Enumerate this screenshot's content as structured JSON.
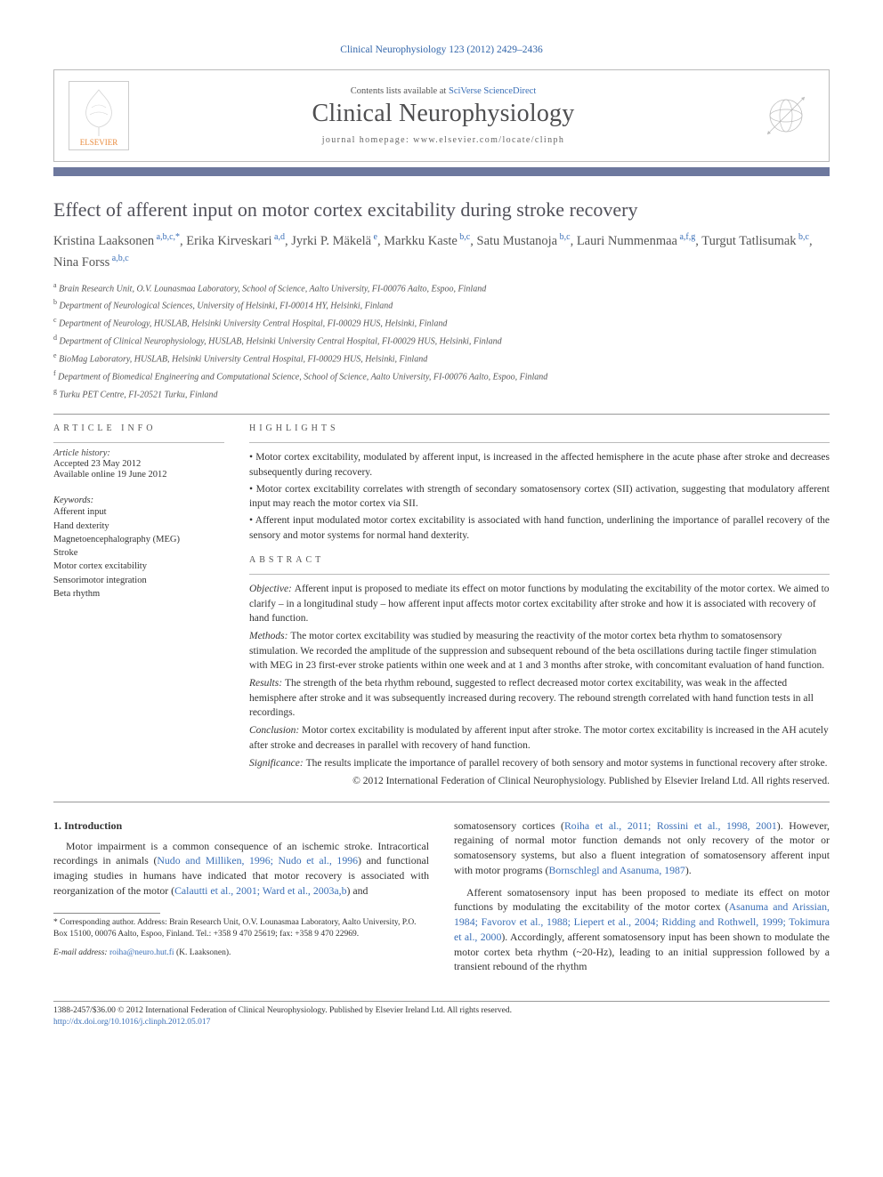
{
  "journal_ref": "Clinical Neurophysiology 123 (2012) 2429–2436",
  "header": {
    "contents_prefix": "Contents lists available at ",
    "contents_link": "SciVerse ScienceDirect",
    "journal_title": "Clinical Neurophysiology",
    "homepage_prefix": "journal homepage: ",
    "homepage_url": "www.elsevier.com/locate/clinph",
    "elsevier_label": "ELSEVIER"
  },
  "title": "Effect of afferent input on motor cortex excitability during stroke recovery",
  "authors": [
    {
      "name": "Kristina Laaksonen",
      "affil": "a,b,c,",
      "star": "*"
    },
    {
      "name": "Erika Kirveskari",
      "affil": "a,d"
    },
    {
      "name": "Jyrki P. Mäkelä",
      "affil": "e"
    },
    {
      "name": "Markku Kaste",
      "affil": "b,c"
    },
    {
      "name": "Satu Mustanoja",
      "affil": "b,c"
    },
    {
      "name": "Lauri Nummenmaa",
      "affil": "a,f,g"
    },
    {
      "name": "Turgut Tatlisumak",
      "affil": "b,c"
    },
    {
      "name": "Nina Forss",
      "affil": "a,b,c"
    }
  ],
  "affiliations": [
    {
      "sup": "a",
      "text": "Brain Research Unit, O.V. Lounasmaa Laboratory, School of Science, Aalto University, FI-00076 Aalto, Espoo, Finland"
    },
    {
      "sup": "b",
      "text": "Department of Neurological Sciences, University of Helsinki, FI-00014 HY, Helsinki, Finland"
    },
    {
      "sup": "c",
      "text": "Department of Neurology, HUSLAB, Helsinki University Central Hospital, FI-00029 HUS, Helsinki, Finland"
    },
    {
      "sup": "d",
      "text": "Department of Clinical Neurophysiology, HUSLAB, Helsinki University Central Hospital, FI-00029 HUS, Helsinki, Finland"
    },
    {
      "sup": "e",
      "text": "BioMag Laboratory, HUSLAB, Helsinki University Central Hospital, FI-00029 HUS, Helsinki, Finland"
    },
    {
      "sup": "f",
      "text": "Department of Biomedical Engineering and Computational Science, School of Science, Aalto University, FI-00076 Aalto, Espoo, Finland"
    },
    {
      "sup": "g",
      "text": "Turku PET Centre, FI-20521 Turku, Finland"
    }
  ],
  "info_heading": "ARTICLE INFO",
  "history_label": "Article history:",
  "history": [
    "Accepted 23 May 2012",
    "Available online 19 June 2012"
  ],
  "keywords_label": "Keywords:",
  "keywords": [
    "Afferent input",
    "Hand dexterity",
    "Magnetoencephalography (MEG)",
    "Stroke",
    "Motor cortex excitability",
    "Sensorimotor integration",
    "Beta rhythm"
  ],
  "highlights_heading": "HIGHLIGHTS",
  "highlights": [
    "Motor cortex excitability, modulated by afferent input, is increased in the affected hemisphere in the acute phase after stroke and decreases subsequently during recovery.",
    "Motor cortex excitability correlates with strength of secondary somatosensory cortex (SII) activation, suggesting that modulatory afferent input may reach the motor cortex via SII.",
    "Afferent input modulated motor cortex excitability is associated with hand function, underlining the importance of parallel recovery of the sensory and motor systems for normal hand dexterity."
  ],
  "abstract_heading": "ABSTRACT",
  "abstract": [
    {
      "label": "Objective:",
      "text": "Afferent input is proposed to mediate its effect on motor functions by modulating the excitability of the motor cortex. We aimed to clarify – in a longitudinal study – how afferent input affects motor cortex excitability after stroke and how it is associated with recovery of hand function."
    },
    {
      "label": "Methods:",
      "text": "The motor cortex excitability was studied by measuring the reactivity of the motor cortex beta rhythm to somatosensory stimulation. We recorded the amplitude of the suppression and subsequent rebound of the beta oscillations during tactile finger stimulation with MEG in 23 first-ever stroke patients within one week and at 1 and 3 months after stroke, with concomitant evaluation of hand function."
    },
    {
      "label": "Results:",
      "text": "The strength of the beta rhythm rebound, suggested to reflect decreased motor cortex excitability, was weak in the affected hemisphere after stroke and it was subsequently increased during recovery. The rebound strength correlated with hand function tests in all recordings."
    },
    {
      "label": "Conclusion:",
      "text": "Motor cortex excitability is modulated by afferent input after stroke. The motor cortex excitability is increased in the AH acutely after stroke and decreases in parallel with recovery of hand function."
    },
    {
      "label": "Significance:",
      "text": "The results implicate the importance of parallel recovery of both sensory and motor systems in functional recovery after stroke."
    }
  ],
  "copyright": "© 2012 International Federation of Clinical Neurophysiology. Published by Elsevier Ireland Ltd. All rights reserved.",
  "intro_heading": "1. Introduction",
  "intro_left_p1_a": "Motor impairment is a common consequence of an ischemic stroke. Intracortical recordings in animals (",
  "intro_left_p1_cite1": "Nudo and Milliken, 1996; Nudo et al., 1996",
  "intro_left_p1_b": ") and functional imaging studies in humans have indicated that motor recovery is associated with reorganization of the motor (",
  "intro_left_p1_cite2": "Calautti et al., 2001; Ward et al., 2003a,b",
  "intro_left_p1_c": ") and",
  "intro_right_p1_a": "somatosensory cortices (",
  "intro_right_p1_cite1": "Roiha et al., 2011; Rossini et al., 1998, 2001",
  "intro_right_p1_b": "). However, regaining of normal motor function demands not only recovery of the motor or somatosensory systems, but also a fluent integration of somatosensory afferent input with motor programs (",
  "intro_right_p1_cite2": "Bornschlegl and Asanuma, 1987",
  "intro_right_p1_c": ").",
  "intro_right_p2_a": "Afferent somatosensory input has been proposed to mediate its effect on motor functions by modulating the excitability of the motor cortex (",
  "intro_right_p2_cite1": "Asanuma and Arissian, 1984; Favorov et al., 1988; Liepert et al., 2004; Ridding and Rothwell, 1999; Tokimura et al., 2000",
  "intro_right_p2_b": "). Accordingly, afferent somatosensory input has been shown to modulate the motor cortex beta rhythm (~20-Hz), leading to an initial suppression followed by a transient rebound of the rhythm",
  "footnote_corr_a": "* Corresponding author. Address: Brain Research Unit, O.V. Lounasmaa Laboratory, Aalto University, P.O. Box 15100, 00076 Aalto, Espoo, Finland. Tel.: +358 9 470 25619; fax: +358 9 470 22969.",
  "footnote_email_label": "E-mail address:",
  "footnote_email": "roiha@neuro.hut.fi",
  "footnote_email_suffix": "(K. Laaksonen).",
  "bottom": {
    "line1": "1388-2457/$36.00 © 2012 International Federation of Clinical Neurophysiology. Published by Elsevier Ireland Ltd. All rights reserved.",
    "doi": "http://dx.doi.org/10.1016/j.clinph.2012.05.017"
  },
  "colors": {
    "accent_blue": "#3a6fb7",
    "rule_bar": "#6d789e",
    "title_gray": "#505059",
    "elsevier_orange": "#e98b3e"
  }
}
